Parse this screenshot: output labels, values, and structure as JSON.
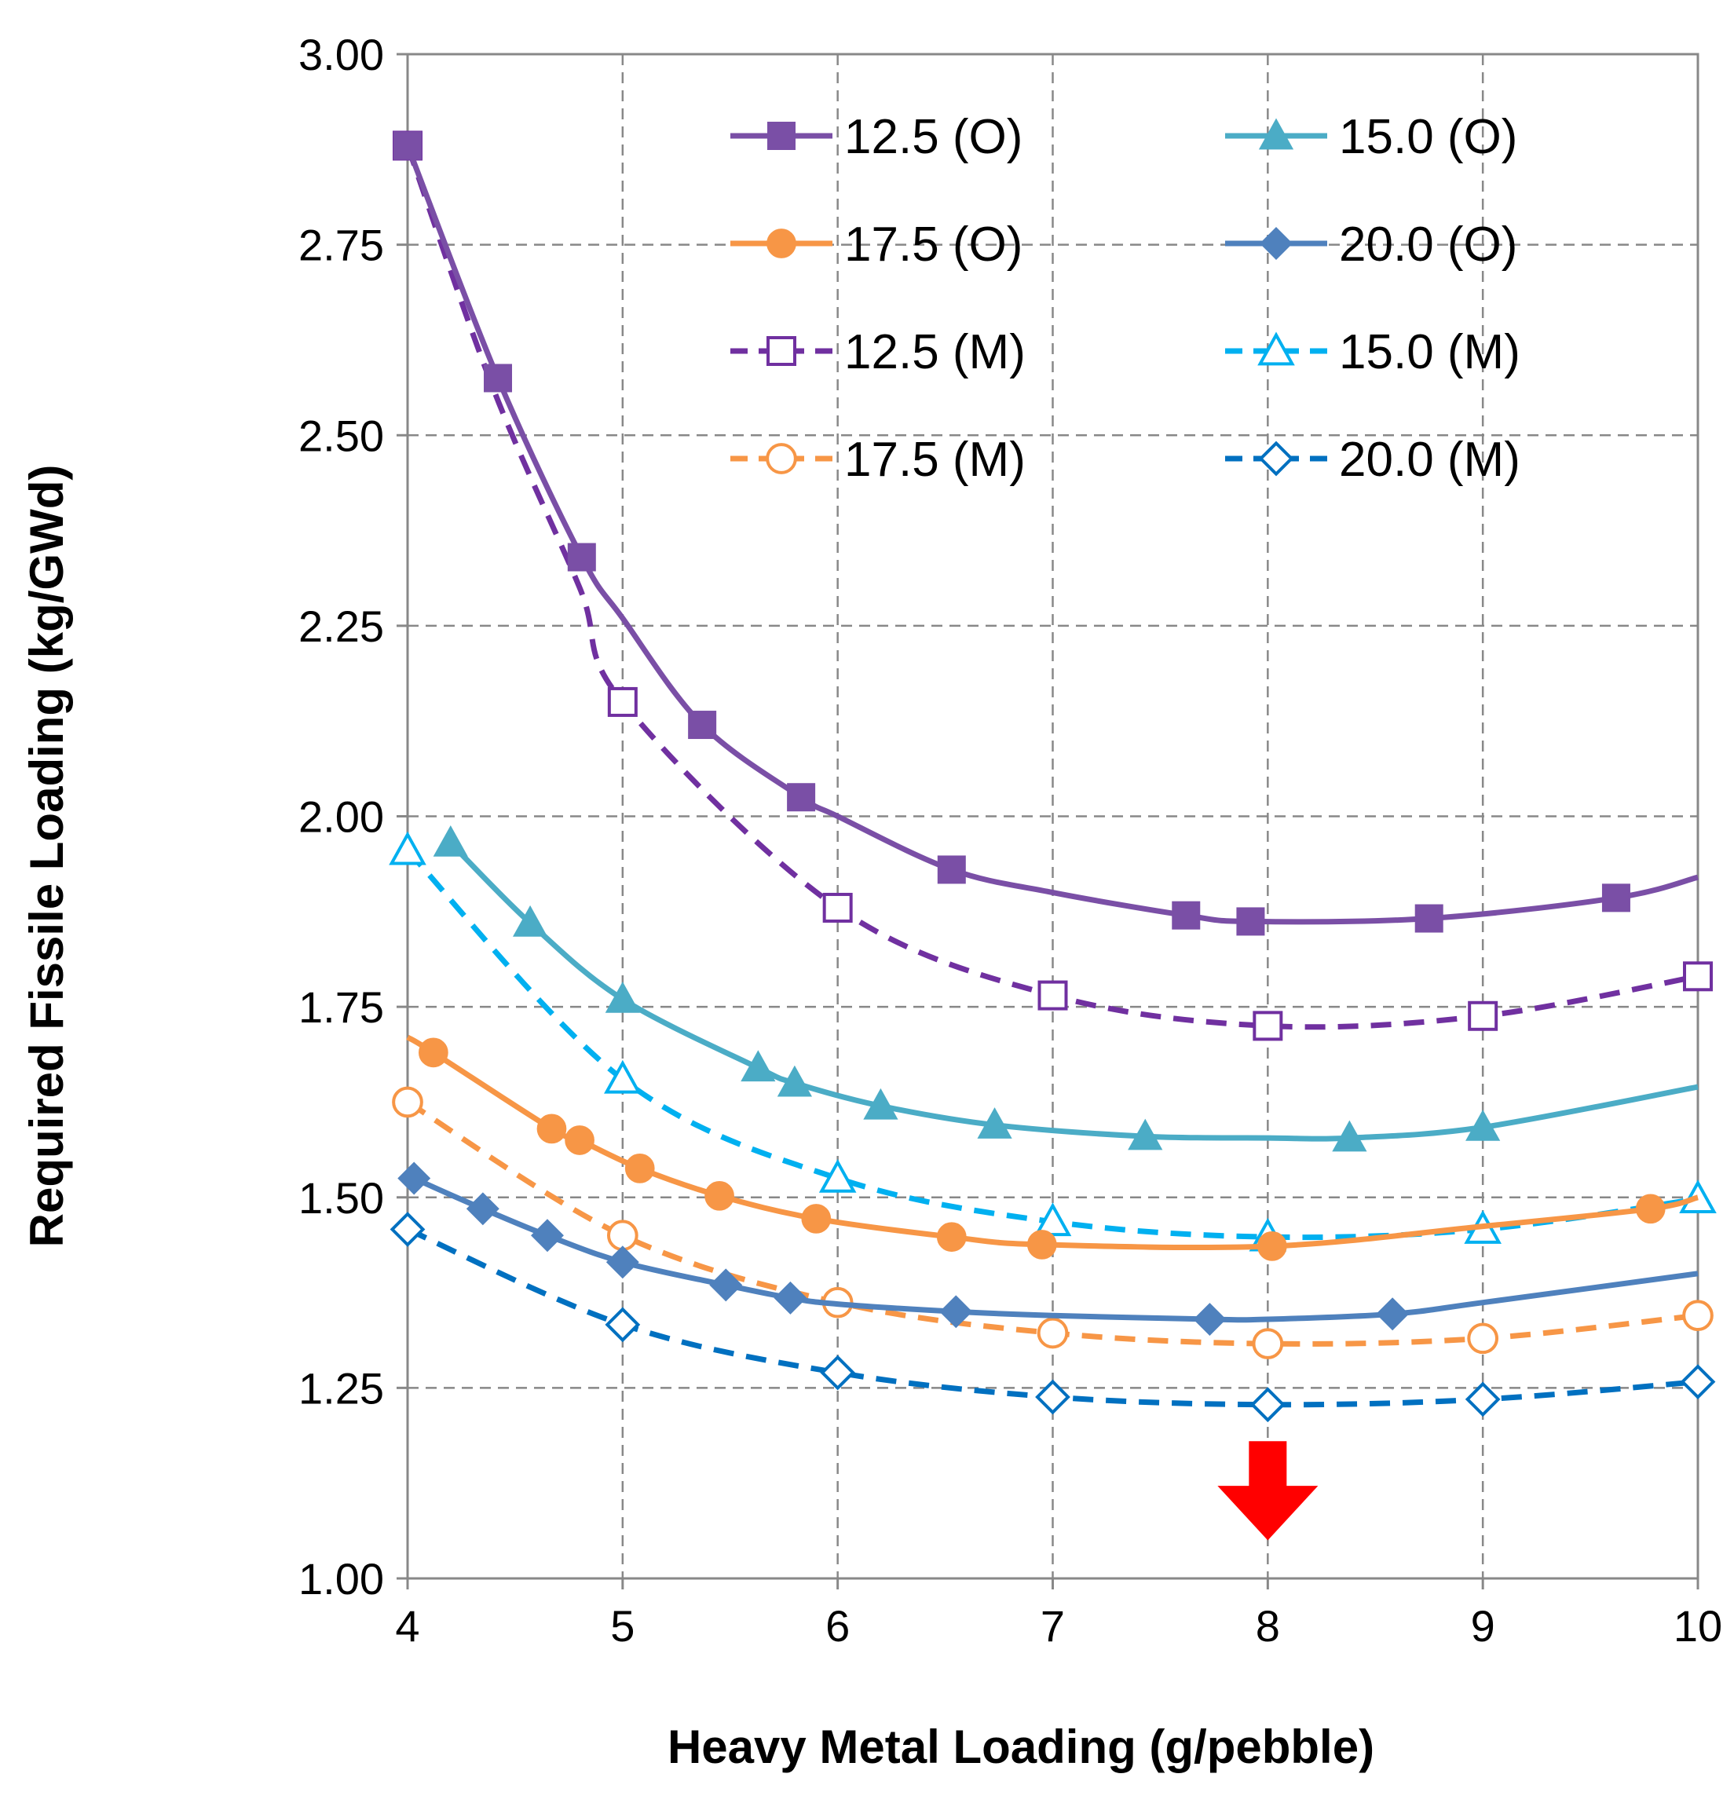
{
  "chart_data": {
    "type": "line",
    "title": "",
    "xlabel": "Heavy Metal Loading (g/pebble)",
    "ylabel": "Required Fissile Loading (kg/GWd)",
    "xlim": [
      4,
      10
    ],
    "ylim": [
      1.0,
      3.0
    ],
    "x_ticks": [
      "4",
      "5",
      "6",
      "7",
      "8",
      "9",
      "10"
    ],
    "y_ticks": [
      "1.00",
      "1.25",
      "1.50",
      "1.75",
      "2.00",
      "2.25",
      "2.50",
      "2.75",
      "3.00"
    ],
    "grid": true,
    "legend_position": "top-right",
    "series": [
      {
        "name": "12.5 (O)",
        "color": "#7a4fa6",
        "dashed": false,
        "marker": "square",
        "filled": true,
        "x": [
          4.0,
          4.42,
          4.81,
          5.37,
          5.83,
          6.53,
          7.62,
          7.92,
          8.75,
          9.62
        ],
        "y": [
          2.88,
          2.575,
          2.34,
          2.12,
          2.025,
          1.93,
          1.87,
          1.862,
          1.866,
          1.893
        ],
        "curve_x": [
          4.0,
          4.42,
          4.81,
          5.0,
          5.37,
          5.83,
          6.0,
          6.53,
          7.0,
          7.62,
          7.92,
          8.75,
          9.62,
          10.0
        ],
        "curve_y": [
          2.88,
          2.575,
          2.34,
          2.26,
          2.12,
          2.025,
          2.0,
          1.93,
          1.9,
          1.87,
          1.862,
          1.866,
          1.893,
          1.92
        ]
      },
      {
        "name": "15.0 (O)",
        "color": "#4bacc6",
        "dashed": false,
        "marker": "triangle",
        "filled": true,
        "x": [
          4.2,
          4.57,
          5.0,
          5.63,
          5.8,
          6.2,
          6.73,
          7.43,
          8.38,
          9.0
        ],
        "y": [
          1.965,
          1.86,
          1.76,
          1.67,
          1.65,
          1.62,
          1.595,
          1.58,
          1.578,
          1.592
        ],
        "curve_x": [
          4.2,
          4.57,
          5.0,
          5.63,
          5.8,
          6.2,
          6.73,
          7.43,
          8.0,
          8.38,
          9.0,
          10.0
        ],
        "curve_y": [
          1.965,
          1.86,
          1.76,
          1.67,
          1.65,
          1.62,
          1.595,
          1.58,
          1.578,
          1.578,
          1.592,
          1.645
        ]
      },
      {
        "name": "17.5 (O)",
        "color": "#f79646",
        "dashed": false,
        "marker": "circle",
        "filled": true,
        "x": [
          4.12,
          4.67,
          4.8,
          5.08,
          5.45,
          5.9,
          6.53,
          6.95,
          8.02,
          9.78
        ],
        "y": [
          1.69,
          1.59,
          1.575,
          1.538,
          1.502,
          1.472,
          1.448,
          1.438,
          1.436,
          1.485
        ],
        "curve_x": [
          4.0,
          4.12,
          4.67,
          4.8,
          5.08,
          5.45,
          5.9,
          6.53,
          6.95,
          8.02,
          9.0,
          9.78,
          10.0
        ],
        "curve_y": [
          1.71,
          1.69,
          1.59,
          1.575,
          1.538,
          1.502,
          1.472,
          1.448,
          1.438,
          1.436,
          1.462,
          1.485,
          1.5
        ]
      },
      {
        "name": "20.0 (O)",
        "color": "#4f81bd",
        "dashed": false,
        "marker": "diamond",
        "filled": true,
        "x": [
          4.03,
          4.35,
          4.65,
          5.0,
          5.48,
          5.78,
          6.55,
          7.73,
          8.58
        ],
        "y": [
          1.525,
          1.485,
          1.45,
          1.415,
          1.385,
          1.368,
          1.35,
          1.34,
          1.347
        ],
        "curve_x": [
          4.0,
          4.03,
          4.35,
          4.65,
          5.0,
          5.48,
          5.78,
          6.0,
          6.55,
          7.0,
          7.73,
          8.0,
          8.58,
          9.0,
          10.0
        ],
        "curve_y": [
          1.53,
          1.525,
          1.485,
          1.45,
          1.415,
          1.385,
          1.368,
          1.36,
          1.35,
          1.345,
          1.34,
          1.34,
          1.347,
          1.362,
          1.4
        ]
      },
      {
        "name": "12.5 (M)",
        "color": "#7030a0",
        "dashed": true,
        "marker": "square",
        "filled": false,
        "x": [
          4.0,
          5.0,
          6.0,
          7.0,
          8.0,
          9.0,
          10.0
        ],
        "y": [
          2.88,
          2.15,
          1.88,
          1.765,
          1.725,
          1.738,
          1.79
        ],
        "curve_x": [
          4.0,
          4.4,
          4.8,
          5.0,
          6.0,
          7.0,
          8.0,
          9.0,
          10.0
        ],
        "curve_y": [
          2.88,
          2.56,
          2.3,
          2.15,
          1.88,
          1.765,
          1.725,
          1.738,
          1.79
        ]
      },
      {
        "name": "15.0 (M)",
        "color": "#00b0f0",
        "dashed": true,
        "marker": "triangle",
        "filled": false,
        "x": [
          4.0,
          5.0,
          6.0,
          7.0,
          8.0,
          9.0,
          10.0
        ],
        "y": [
          1.955,
          1.655,
          1.525,
          1.468,
          1.448,
          1.458,
          1.498
        ]
      },
      {
        "name": "17.5 (M)",
        "color": "#f79646",
        "dashed": true,
        "marker": "circle",
        "filled": false,
        "x": [
          4.0,
          5.0,
          6.0,
          7.0,
          8.0,
          9.0,
          10.0
        ],
        "y": [
          1.625,
          1.45,
          1.362,
          1.322,
          1.308,
          1.315,
          1.345
        ]
      },
      {
        "name": "20.0 (M)",
        "color": "#0070c0",
        "dashed": true,
        "marker": "diamond",
        "filled": false,
        "x": [
          4.0,
          5.0,
          6.0,
          7.0,
          8.0,
          9.0,
          10.0
        ],
        "y": [
          1.458,
          1.333,
          1.27,
          1.238,
          1.228,
          1.235,
          1.258
        ]
      }
    ],
    "annotation": {
      "type": "arrow",
      "direction": "down",
      "color": "#ff0000",
      "x": 8.0,
      "y_top": 1.18,
      "y_bottom": 1.05
    }
  }
}
